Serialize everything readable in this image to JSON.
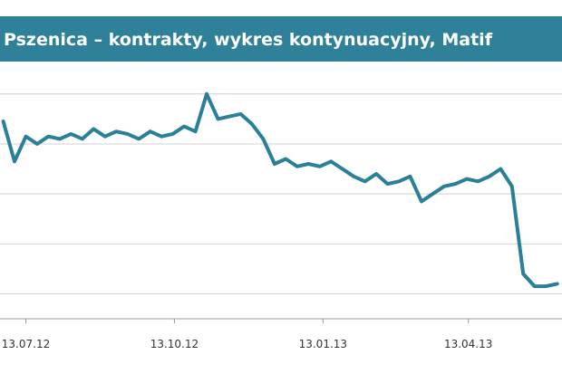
{
  "chart_data": {
    "type": "line",
    "title": "Pszenica – kontrakty, wykres kontynuacyjny, Matif",
    "x": [
      "2012-06-29",
      "2012-07-06",
      "2012-07-13",
      "2012-07-20",
      "2012-07-27",
      "2012-08-03",
      "2012-08-10",
      "2012-08-17",
      "2012-08-24",
      "2012-08-31",
      "2012-09-07",
      "2012-09-14",
      "2012-09-21",
      "2012-09-28",
      "2012-10-05",
      "2012-10-12",
      "2012-10-19",
      "2012-10-26",
      "2012-11-02",
      "2012-11-09",
      "2012-11-16",
      "2012-11-23",
      "2012-11-30",
      "2012-12-07",
      "2012-12-14",
      "2012-12-21",
      "2012-12-28",
      "2013-01-04",
      "2013-01-11",
      "2013-01-18",
      "2013-01-25",
      "2013-02-01",
      "2013-02-08",
      "2013-02-15",
      "2013-02-22",
      "2013-03-01",
      "2013-03-08",
      "2013-03-15",
      "2013-03-22",
      "2013-03-29",
      "2013-04-05",
      "2013-04-12",
      "2013-04-19",
      "2013-04-26",
      "2013-05-03",
      "2013-05-10",
      "2013-05-17",
      "2013-05-24",
      "2013-05-31",
      "2013-06-07"
    ],
    "series": [
      {
        "color": "#2a8099",
        "values": [
          269,
          253,
          263,
          260,
          263,
          262,
          264,
          262,
          266,
          263,
          265,
          264,
          262,
          265,
          263,
          264,
          267,
          265,
          280,
          270,
          271,
          272,
          268,
          262,
          252,
          254,
          251,
          252,
          251,
          253,
          250,
          247,
          245,
          248,
          244,
          245,
          247,
          237,
          240,
          243,
          244,
          246,
          245,
          247,
          250,
          243,
          208,
          203,
          203,
          204
        ]
      }
    ],
    "xlim": [
      "2012-06-27",
      "2013-06-10"
    ],
    "xticks": [
      {
        "value": "2012-07-13",
        "label": "13.07.12"
      },
      {
        "value": "2012-10-13",
        "label": "13.10.12"
      },
      {
        "value": "2013-01-13",
        "label": "13.01.13"
      },
      {
        "value": "2013-04-13",
        "label": "13.04.13"
      }
    ],
    "ylim": [
      190,
      285
    ],
    "yticks": [
      200,
      220,
      240,
      260,
      280
    ],
    "grid": true
  }
}
